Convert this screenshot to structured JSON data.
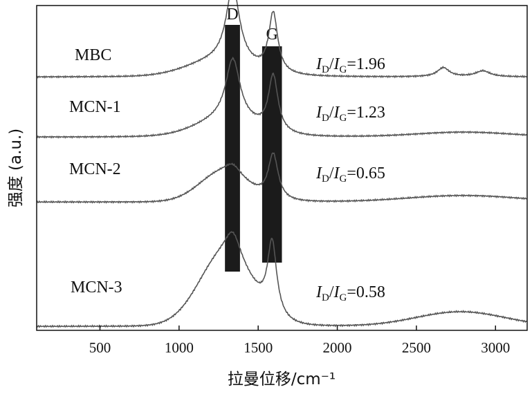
{
  "chart_data": {
    "type": "line",
    "xlabel": "拉曼位移/cm⁻¹",
    "ylabel": "强度 (a.u.)",
    "xlim": [
      100,
      3200
    ],
    "x_ticks": [
      500,
      1000,
      1500,
      2000,
      2500,
      3000
    ],
    "x_tick_labels": [
      "500",
      "1000",
      "1500",
      "2000",
      "2500",
      "3000"
    ],
    "y_ticks_shown": false,
    "grid": false,
    "bands": [
      {
        "name": "D",
        "x_range": [
          1290,
          1385
        ]
      },
      {
        "name": "G",
        "x_range": [
          1525,
          1650
        ]
      }
    ],
    "series": [
      {
        "name": "MBC",
        "ratio": {
          "D": "D",
          "G": "G",
          "value": "=1.96"
        },
        "baseline": 0.78,
        "broad": [
          {
            "center": 1250,
            "height": 0.045,
            "width": 200
          }
        ],
        "peaks": [
          {
            "center": 1340,
            "height": 0.235,
            "width": 52
          },
          {
            "center": 1595,
            "height": 0.183,
            "width": 34
          },
          {
            "center": 2670,
            "height": 0.028,
            "width": 45
          },
          {
            "center": 2920,
            "height": 0.018,
            "width": 55
          }
        ]
      },
      {
        "name": "MCN-1",
        "ratio": {
          "D": "D",
          "G": "G",
          "value": "=1.23"
        },
        "baseline": 0.595,
        "broad": [
          {
            "center": 1300,
            "height": 0.05,
            "width": 190
          },
          {
            "center": 2800,
            "height": 0.015,
            "width": 300
          }
        ],
        "peaks": [
          {
            "center": 1340,
            "height": 0.19,
            "width": 55
          },
          {
            "center": 1595,
            "height": 0.172,
            "width": 36
          }
        ]
      },
      {
        "name": "MCN-2",
        "ratio": {
          "D": "D",
          "G": "G",
          "value": "=0.65"
        },
        "baseline": 0.395,
        "broad": [
          {
            "center": 1280,
            "height": 0.09,
            "width": 150
          },
          {
            "center": 2800,
            "height": 0.02,
            "width": 350
          }
        ],
        "peaks": [
          {
            "center": 1340,
            "height": 0.03,
            "width": 60
          },
          {
            "center": 1595,
            "height": 0.14,
            "width": 38
          }
        ]
      },
      {
        "name": "MCN-3",
        "ratio": {
          "D": "D",
          "G": "G",
          "value": "=0.58"
        },
        "baseline": 0.012,
        "broad": [
          {
            "center": 1290,
            "height": 0.215,
            "width": 165
          },
          {
            "center": 2780,
            "height": 0.045,
            "width": 280
          }
        ],
        "peaks": [
          {
            "center": 1340,
            "height": 0.08,
            "width": 60
          },
          {
            "center": 1588,
            "height": 0.225,
            "width": 35
          }
        ]
      }
    ]
  }
}
